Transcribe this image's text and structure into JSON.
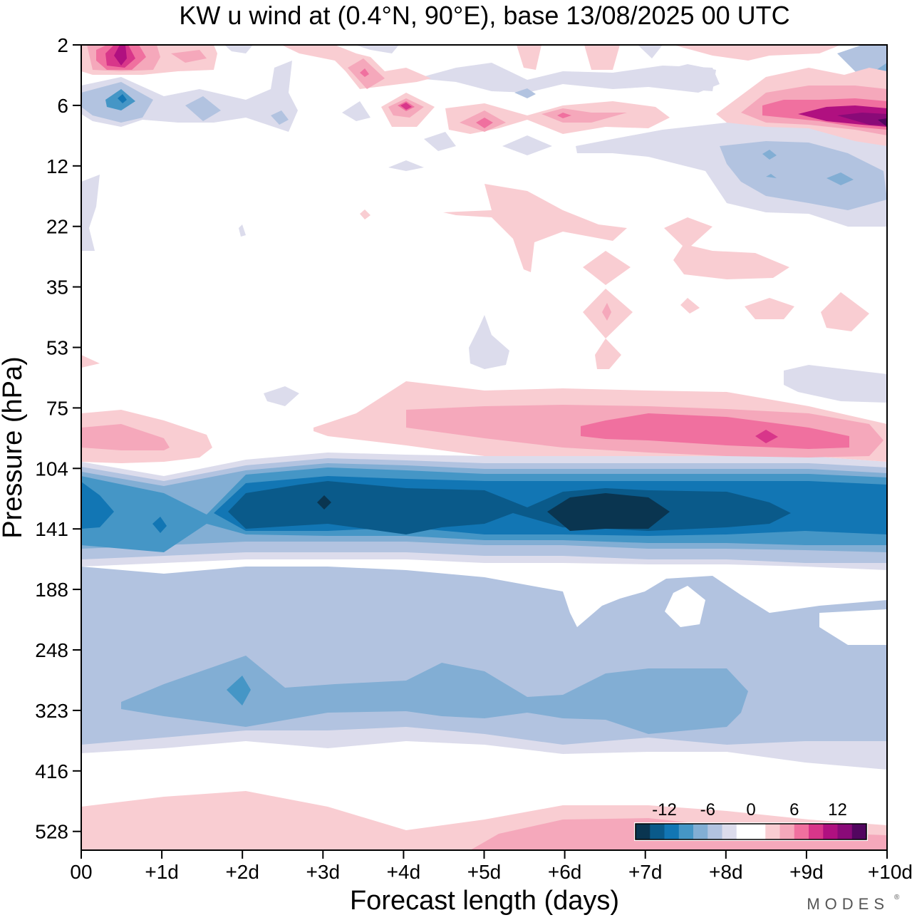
{
  "chart_data": {
    "type": "heatmap",
    "title": "KW u wind at (0.4°N, 90°E),  base 13/08/2025  00 UTC",
    "xlabel": "Forecast length (days)",
    "ylabel": "Pressure (hPa)",
    "xlim": [
      0,
      10
    ],
    "x_ticks": [
      0,
      1,
      2,
      3,
      4,
      5,
      6,
      7,
      8,
      9,
      10
    ],
    "x_tick_labels": [
      "00",
      "+1d",
      "+2d",
      "+3d",
      "+4d",
      "+5d",
      "+6d",
      "+7d",
      "+8d",
      "+9d",
      "+10d"
    ],
    "y_ticks": [
      2,
      6,
      12,
      22,
      35,
      53,
      75,
      104,
      141,
      188,
      248,
      323,
      416,
      528
    ],
    "y_tick_labels": [
      "2",
      "6",
      "12",
      "22",
      "35",
      "53",
      "75",
      "104",
      "141",
      "188",
      "248",
      "323",
      "416",
      "528"
    ],
    "y_axis": "pressure (hPa), index-spaced, increasing downward",
    "colorbar": {
      "tick_labels": [
        "-12",
        "-6",
        "0",
        "6",
        "12"
      ],
      "levels": [
        -16,
        -14,
        -12,
        -10,
        -8,
        -6,
        -4,
        -2,
        0,
        2,
        4,
        6,
        8,
        10,
        12,
        14,
        16
      ],
      "colors": [
        "#0a3550",
        "#0a5a8a",
        "#1276b4",
        "#4596c6",
        "#82aed4",
        "#b2c3e0",
        "#dcdcec",
        "#ffffff",
        "#ffffff",
        "#f9cdd2",
        "#f5a8bb",
        "#f0709f",
        "#d8368a",
        "#b01080",
        "#8a0a78",
        "#52065f"
      ],
      "placement": "bottom-right inside plot"
    },
    "features": [
      {
        "name": "upper-stratosphere-positive",
        "pressure": 2,
        "x_range": [
          0,
          2
        ],
        "u_peak": 10
      },
      {
        "name": "upper-stratosphere-negative",
        "pressure": 6,
        "x_range": [
          0,
          1.5
        ],
        "u_peak": -10
      },
      {
        "name": "late-positive-jet",
        "pressure": 6,
        "x_range": [
          8,
          10
        ],
        "u_peak": 16
      },
      {
        "name": "late-negative-band",
        "pressure": 12,
        "x_range": [
          8,
          10
        ],
        "u_peak": -6
      },
      {
        "name": "positive-band-85hPa",
        "pressure": 85,
        "x_range": [
          3,
          10
        ],
        "u_peak": 8
      },
      {
        "name": "easterly-jet",
        "pressure": 125,
        "x_range": [
          0,
          10
        ],
        "u_peak": -16
      },
      {
        "name": "negative-band-290hPa",
        "pressure": 290,
        "x_range": [
          0.5,
          10
        ],
        "u_peak": -6
      },
      {
        "name": "near-surface-positive",
        "pressure": 528,
        "x_range": [
          0,
          10
        ],
        "u_peak": 4
      }
    ]
  },
  "watermark": "MODES"
}
